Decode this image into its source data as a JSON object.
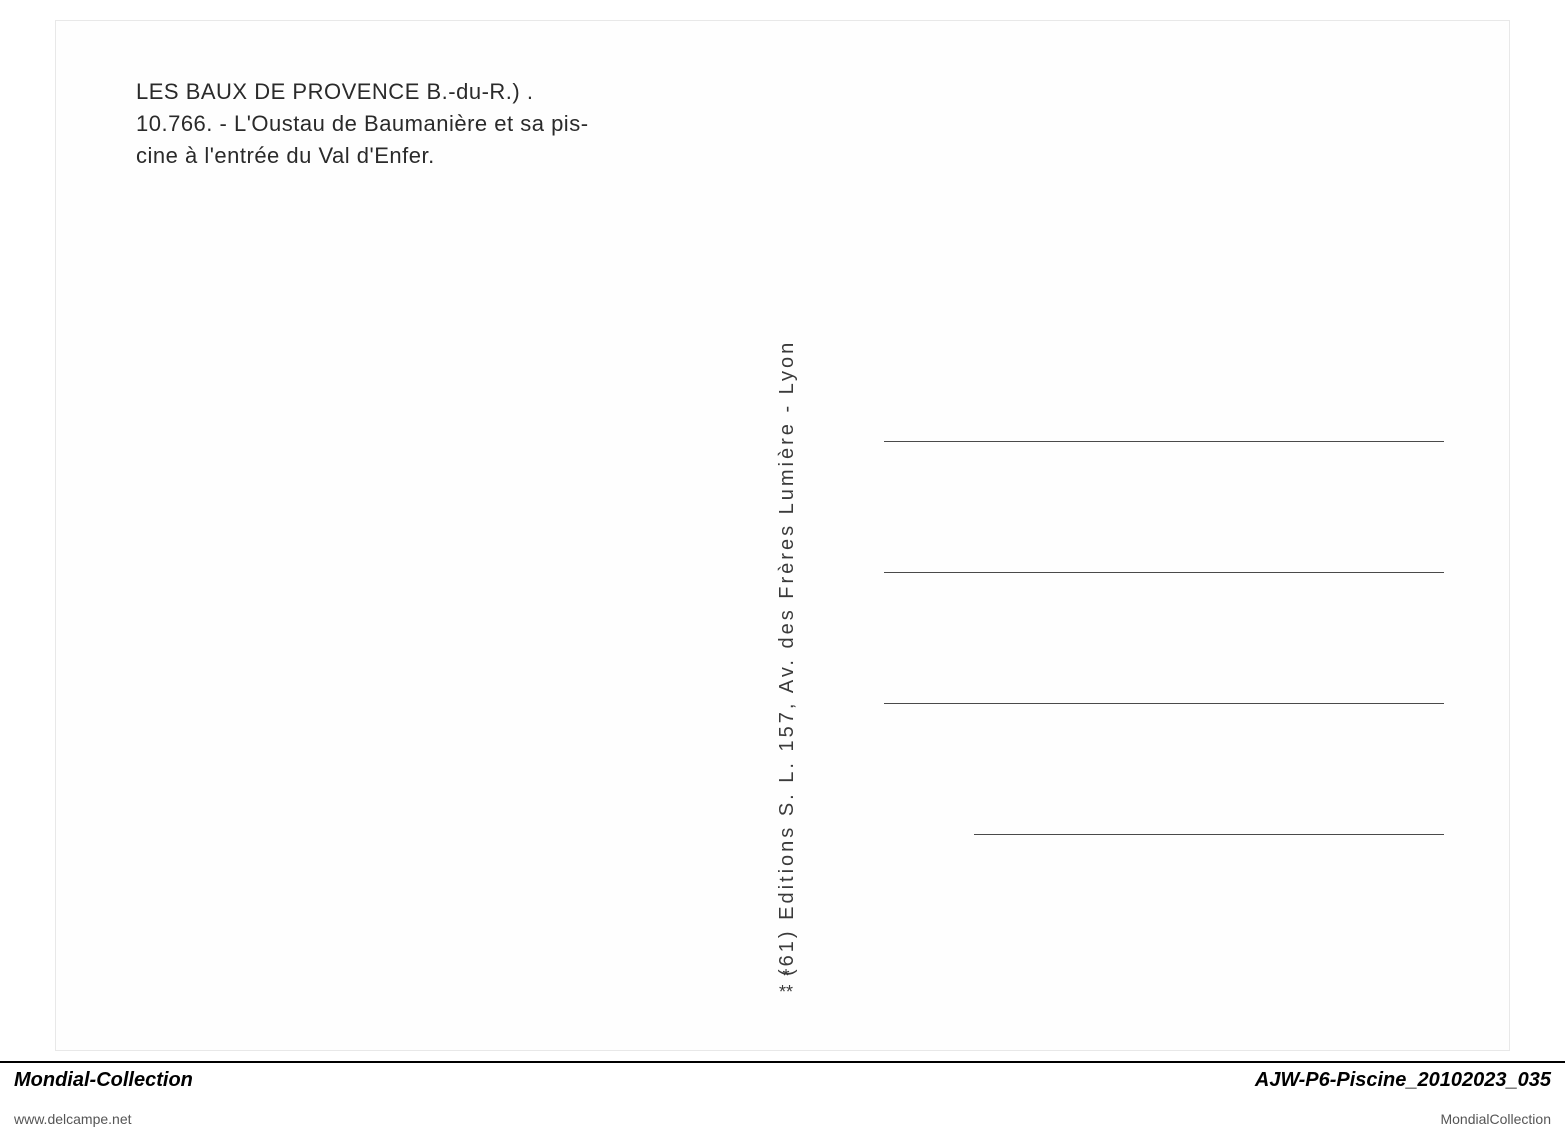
{
  "postcard": {
    "title_location": "LES BAUX DE PROVENCE",
    "title_dept": "B.-du-R.) .",
    "ref_number": "10.766.",
    "caption": " - L'Oustau de Baumanière et sa pis-\ncine à l'entrée du Val d'Enfer.",
    "publisher": "(61)  Editions  S. L.  157,  Av.  des  Frères  Lumière  -  Lyon",
    "asterisk_top": "*",
    "asterisk_bottom": "**"
  },
  "footer": {
    "left_label": "Mondial-Collection",
    "right_label": "AJW-P6-Piscine_20102023_035",
    "left_url": "www.delcampe.net",
    "right_credit": "MondialCollection"
  },
  "colors": {
    "page_bg": "#ffffff",
    "card_bg": "#fefefe",
    "text": "#2a2a2a",
    "line": "#4a4a4a",
    "footer_border": "#000000"
  }
}
